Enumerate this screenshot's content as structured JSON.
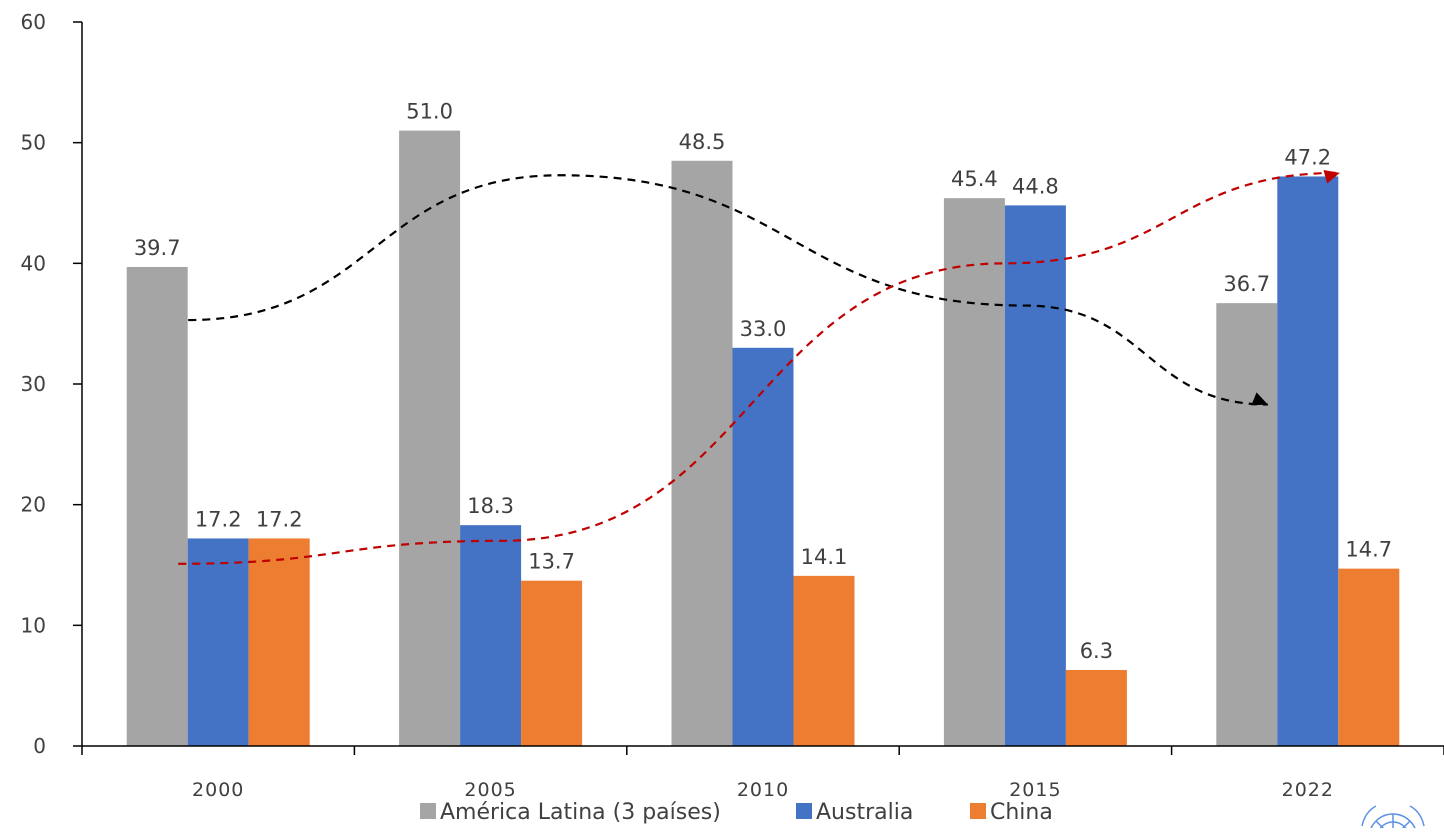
{
  "chart_data": {
    "type": "bar",
    "title": "",
    "xlabel": "",
    "ylabel": "",
    "ylim": [
      0,
      60
    ],
    "yticks": [
      0,
      10,
      20,
      30,
      40,
      50,
      60
    ],
    "grid": false,
    "legend_position": "bottom",
    "categories": [
      "2000",
      "2005",
      "2010",
      "2015",
      "2022"
    ],
    "series": [
      {
        "name": "América Latina (3 países)",
        "color": "#a5a5a5",
        "values": [
          39.7,
          51.0,
          48.5,
          45.4,
          36.7
        ],
        "labels": [
          "39.7",
          "51.0",
          "48.5",
          "45.4",
          "36.7"
        ]
      },
      {
        "name": "Australia",
        "color": "#4472c4",
        "values": [
          17.2,
          18.3,
          33.0,
          44.8,
          47.2
        ],
        "labels": [
          "17.2",
          "18.3",
          "33.0",
          "44.8",
          "47.2"
        ]
      },
      {
        "name": "China",
        "color": "#ed7d31",
        "values": [
          17.2,
          13.7,
          14.1,
          6.3,
          14.7
        ],
        "labels": [
          "17.2",
          "13.7",
          "14.1",
          "6.3",
          "14.7"
        ]
      }
    ],
    "annotations": [
      {
        "kind": "dashed-arrow",
        "color": "#000000",
        "from": "2000",
        "to": "2022",
        "trend": "rise-then-fall"
      },
      {
        "kind": "dashed-arrow",
        "color": "#c00000",
        "from": "2000",
        "to": "2022",
        "trend": "rise"
      }
    ]
  },
  "logo": {
    "icon": "un-emblem-icon"
  }
}
